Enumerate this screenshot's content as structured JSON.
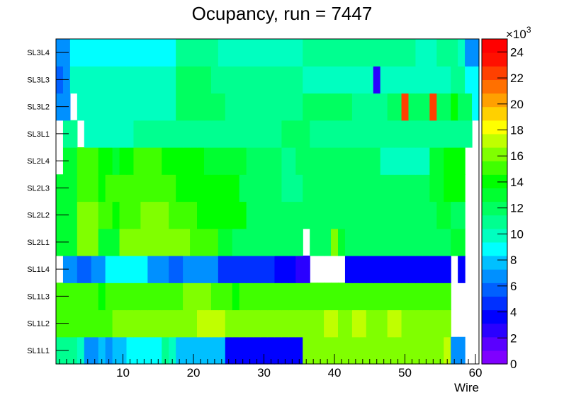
{
  "chart_data": {
    "type": "heatmap",
    "title": "Ocupancy, run = 7447",
    "xlabel": "Wire",
    "ylabel": "",
    "x_range": [
      0.5,
      60.5
    ],
    "x_ticks": [
      "10",
      "20",
      "30",
      "40",
      "50",
      "60"
    ],
    "y_categories": [
      "SL1L1",
      "SL1L2",
      "SL1L3",
      "SL1L4",
      "SL2L1",
      "SL2L2",
      "SL2L3",
      "SL2L4",
      "SL3L1",
      "SL3L2",
      "SL3L3",
      "SL3L4"
    ],
    "z_range": [
      0,
      25000
    ],
    "z_exponent_label": "×10",
    "z_exponent_power": "3",
    "z_ticks": [
      "0",
      "2",
      "4",
      "6",
      "8",
      "10",
      "12",
      "14",
      "16",
      "18",
      "20",
      "22",
      "24"
    ],
    "palette": [
      "#7f00ff",
      "#5a00ff",
      "#2a00ff",
      "#0000ff",
      "#0030ff",
      "#0060ff",
      "#0090ff",
      "#00c0ff",
      "#00ffff",
      "#00ffc0",
      "#00ff90",
      "#00ff60",
      "#00ff30",
      "#00ff00",
      "#40ff00",
      "#80ff00",
      "#c0ff00",
      "#ffff00",
      "#ffd000",
      "#ffa000",
      "#ff7000",
      "#ff4000",
      "#ff1000",
      "#ff0000"
    ],
    "rows": {
      "SL1L1": [
        11,
        11,
        11,
        10,
        7,
        7,
        8,
        7,
        8,
        8,
        9,
        9,
        9,
        9,
        9,
        11,
        10,
        8,
        8,
        8,
        8,
        8,
        8,
        8,
        4,
        4,
        4,
        4,
        4,
        4,
        4,
        4,
        4,
        4,
        4,
        16,
        16,
        16,
        16,
        16,
        16,
        16,
        16,
        16,
        16,
        16,
        16,
        16,
        16,
        16,
        16,
        16,
        16,
        16,
        16,
        17,
        7,
        7,
        null,
        null
      ],
      "SL1L2": [
        15,
        15,
        15,
        15,
        15,
        15,
        15,
        15,
        16,
        16,
        16,
        16,
        16,
        16,
        16,
        16,
        16,
        16,
        16,
        16,
        17,
        17,
        17,
        17,
        16,
        16,
        16,
        16,
        16,
        16,
        16,
        16,
        16,
        16,
        16,
        16,
        16,
        16,
        17,
        17,
        16,
        16,
        17,
        17,
        16,
        16,
        16,
        17,
        17,
        16,
        16,
        16,
        16,
        16,
        16,
        16,
        null,
        null,
        null,
        null
      ],
      "SL1L3": [
        15,
        15,
        15,
        15,
        15,
        15,
        14,
        15,
        15,
        15,
        15,
        15,
        15,
        15,
        15,
        15,
        15,
        15,
        16,
        16,
        16,
        16,
        15,
        15,
        15,
        14,
        15,
        15,
        15,
        15,
        15,
        15,
        15,
        15,
        15,
        15,
        15,
        15,
        15,
        15,
        15,
        15,
        15,
        15,
        15,
        15,
        15,
        15,
        15,
        15,
        15,
        15,
        15,
        15,
        15,
        15,
        null,
        null,
        null,
        null
      ],
      "SL1L4": [
        null,
        7,
        7,
        6,
        6,
        7,
        7,
        9,
        9,
        9,
        9,
        9,
        9,
        7,
        7,
        7,
        6,
        6,
        7,
        7,
        7,
        7,
        7,
        5,
        5,
        5,
        5,
        5,
        5,
        5,
        5,
        4,
        4,
        4,
        3,
        3,
        null,
        null,
        null,
        null,
        null,
        4,
        4,
        4,
        4,
        4,
        4,
        4,
        4,
        4,
        4,
        4,
        4,
        4,
        4,
        4,
        null,
        4,
        null,
        null
      ],
      "SL2L1": [
        13,
        13,
        13,
        16,
        16,
        16,
        13,
        13,
        13,
        16,
        16,
        16,
        16,
        16,
        16,
        16,
        16,
        16,
        16,
        15,
        15,
        15,
        15,
        13,
        13,
        12,
        12,
        12,
        12,
        12,
        12,
        12,
        12,
        12,
        12,
        null,
        12,
        12,
        12,
        16,
        13,
        12,
        12,
        12,
        12,
        12,
        12,
        12,
        12,
        12,
        12,
        12,
        12,
        12,
        12,
        12,
        13,
        13,
        null,
        null
      ],
      "SL2L2": [
        13,
        13,
        13,
        16,
        16,
        16,
        15,
        15,
        14,
        15,
        15,
        15,
        16,
        16,
        16,
        16,
        15,
        15,
        15,
        15,
        14,
        14,
        14,
        14,
        14,
        14,
        14,
        12,
        12,
        12,
        12,
        12,
        12,
        12,
        12,
        12,
        12,
        12,
        12,
        12,
        12,
        12,
        12,
        12,
        12,
        12,
        12,
        12,
        12,
        12,
        12,
        12,
        12,
        12,
        13,
        13,
        12,
        12,
        null,
        null
      ],
      "SL2L3": [
        13,
        13,
        13,
        15,
        15,
        15,
        14,
        15,
        15,
        15,
        15,
        15,
        15,
        15,
        15,
        15,
        15,
        14,
        14,
        14,
        14,
        14,
        14,
        14,
        14,
        14,
        12,
        12,
        12,
        12,
        12,
        12,
        11,
        11,
        11,
        12,
        12,
        12,
        12,
        12,
        12,
        12,
        12,
        12,
        12,
        12,
        12,
        12,
        12,
        12,
        12,
        12,
        12,
        13,
        13,
        14,
        14,
        14,
        null,
        null
      ],
      "SL2L4": [
        null,
        13,
        13,
        15,
        15,
        15,
        14,
        14,
        13,
        14,
        14,
        15,
        15,
        15,
        15,
        14,
        14,
        14,
        14,
        14,
        14,
        13,
        13,
        13,
        13,
        13,
        13,
        12,
        12,
        12,
        12,
        12,
        11,
        11,
        12,
        12,
        12,
        12,
        12,
        12,
        12,
        12,
        12,
        12,
        12,
        12,
        10,
        10,
        10,
        10,
        10,
        10,
        10,
        13,
        13,
        14,
        14,
        14,
        null,
        null
      ],
      "SL3L1": [
        null,
        11,
        11,
        null,
        10,
        10,
        10,
        10,
        10,
        10,
        10,
        11,
        11,
        11,
        11,
        11,
        11,
        11,
        11,
        11,
        11,
        11,
        11,
        11,
        11,
        11,
        11,
        11,
        11,
        11,
        11,
        11,
        12,
        12,
        12,
        12,
        11,
        11,
        11,
        11,
        11,
        11,
        11,
        11,
        11,
        11,
        11,
        11,
        11,
        11,
        11,
        11,
        11,
        11,
        11,
        11,
        11,
        11,
        11,
        null
      ],
      "SL3L2": [
        7,
        7,
        null,
        10,
        10,
        10,
        10,
        10,
        10,
        10,
        10,
        10,
        10,
        10,
        10,
        10,
        10,
        12,
        12,
        12,
        12,
        12,
        12,
        12,
        11,
        11,
        11,
        11,
        11,
        11,
        11,
        11,
        11,
        11,
        11,
        12,
        12,
        12,
        12,
        12,
        12,
        12,
        11,
        11,
        11,
        11,
        11,
        12,
        12,
        22,
        12,
        12,
        12,
        22,
        12,
        12,
        14,
        12,
        12,
        9
      ],
      "SL3L3": [
        6,
        7,
        10,
        10,
        10,
        10,
        10,
        10,
        10,
        10,
        10,
        10,
        10,
        10,
        10,
        10,
        10,
        12,
        12,
        12,
        12,
        12,
        11,
        11,
        11,
        11,
        11,
        11,
        11,
        11,
        11,
        11,
        11,
        11,
        11,
        10,
        10,
        10,
        10,
        10,
        10,
        10,
        10,
        10,
        10,
        3,
        10,
        10,
        10,
        10,
        10,
        10,
        10,
        10,
        10,
        10,
        11,
        11,
        9,
        9
      ],
      "SL3L4": [
        7,
        7,
        9,
        9,
        9,
        9,
        9,
        9,
        9,
        9,
        9,
        9,
        9,
        9,
        9,
        9,
        9,
        11,
        11,
        11,
        11,
        11,
        11,
        10,
        10,
        10,
        10,
        10,
        10,
        10,
        10,
        10,
        10,
        10,
        10,
        11,
        11,
        11,
        11,
        11,
        11,
        11,
        11,
        11,
        11,
        11,
        11,
        11,
        11,
        11,
        11,
        10,
        10,
        10,
        11,
        11,
        11,
        10,
        7,
        7
      ]
    }
  }
}
